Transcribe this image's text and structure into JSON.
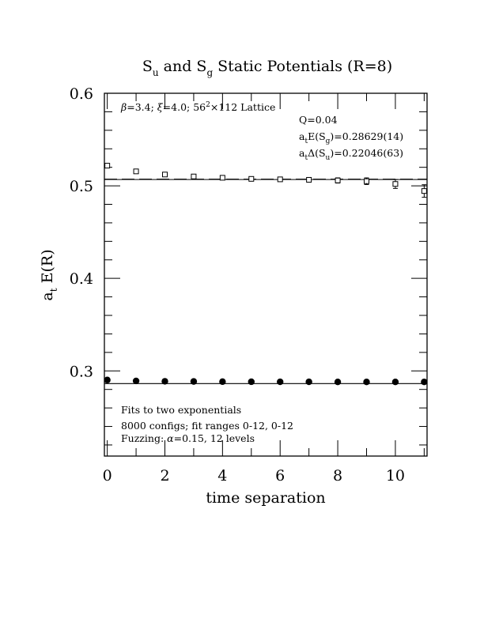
{
  "chart_data": {
    "type": "scatter",
    "title": {
      "prefix_1": "S",
      "sub_1": "u",
      "middle": " and S",
      "sub_2": "g",
      "suffix": " Static Potentials (R=8)"
    },
    "xlabel": "time separation",
    "ylabel": {
      "main": "a",
      "sub": "t",
      "rest": " E(R)"
    },
    "xlim": [
      -0.1,
      11.1
    ],
    "ylim": [
      0.208,
      0.6
    ],
    "x_ticks": [
      "0",
      "2",
      "4",
      "6",
      "8",
      "10"
    ],
    "x_tick_values": [
      0,
      2,
      4,
      6,
      8,
      10
    ],
    "y_ticks": [
      "0.3",
      "0.4",
      "0.5",
      "0.6"
    ],
    "y_tick_values": [
      0.3,
      0.4,
      0.5,
      0.6
    ],
    "grid": false,
    "annotations_top": {
      "lattice": {
        "beta": "β",
        "beta_val": "=3.4; ",
        "xi": "ξ",
        "xi_val": "=4.0; 56",
        "sup": "2",
        "rest": "×112 Lattice"
      },
      "q_line": "Q=0.04",
      "energy": {
        "a": "a",
        "t": "t",
        "e_prefix": "E(S",
        "g": "g",
        "e_suffix": ")=0.28629(14)"
      },
      "delta": {
        "a": "a",
        "t": "t",
        "d_prefix": "Δ(S",
        "u": "u",
        "d_suffix": ")=0.22046(63)"
      }
    },
    "annotations_bottom": {
      "line1": "Fits to two exponentials",
      "line2": "8000 configs; fit ranges 0-12, 0-12",
      "line3_prefix": "Fuzzing: ",
      "alpha": "α",
      "line3_suffix": "=0.15, 12 levels"
    },
    "series": [
      {
        "marker": "open-square",
        "x": [
          0,
          1,
          2,
          3,
          4,
          5,
          6,
          7,
          8,
          9,
          10,
          11
        ],
        "y": [
          0.5218,
          0.5156,
          0.5122,
          0.5101,
          0.5087,
          0.5075,
          0.507,
          0.5065,
          0.5058,
          0.505,
          0.502,
          0.4944
        ],
        "err": [
          0.0008,
          0.0009,
          0.001,
          0.0012,
          0.0014,
          0.0016,
          0.0019,
          0.0023,
          0.0028,
          0.0036,
          0.0048,
          0.0068
        ]
      },
      {
        "marker": "filled-circle",
        "x": [
          0,
          1,
          2,
          3,
          4,
          5,
          6,
          7,
          8,
          9,
          10,
          11
        ],
        "y": [
          0.2902,
          0.2892,
          0.2888,
          0.2886,
          0.2884,
          0.2883,
          0.2882,
          0.2882,
          0.2881,
          0.2881,
          0.2881,
          0.2881
        ]
      }
    ],
    "fit_lines": [
      {
        "style": "solid",
        "y": 0.5068,
        "x_from": -0.1,
        "x_to": 11.1
      },
      {
        "style": "dashed",
        "y": 0.5072,
        "x_from": -0.1,
        "x_to": 11.1
      },
      {
        "style": "solid",
        "y": 0.28629,
        "x_from": -0.1,
        "x_to": 11.1
      }
    ]
  }
}
